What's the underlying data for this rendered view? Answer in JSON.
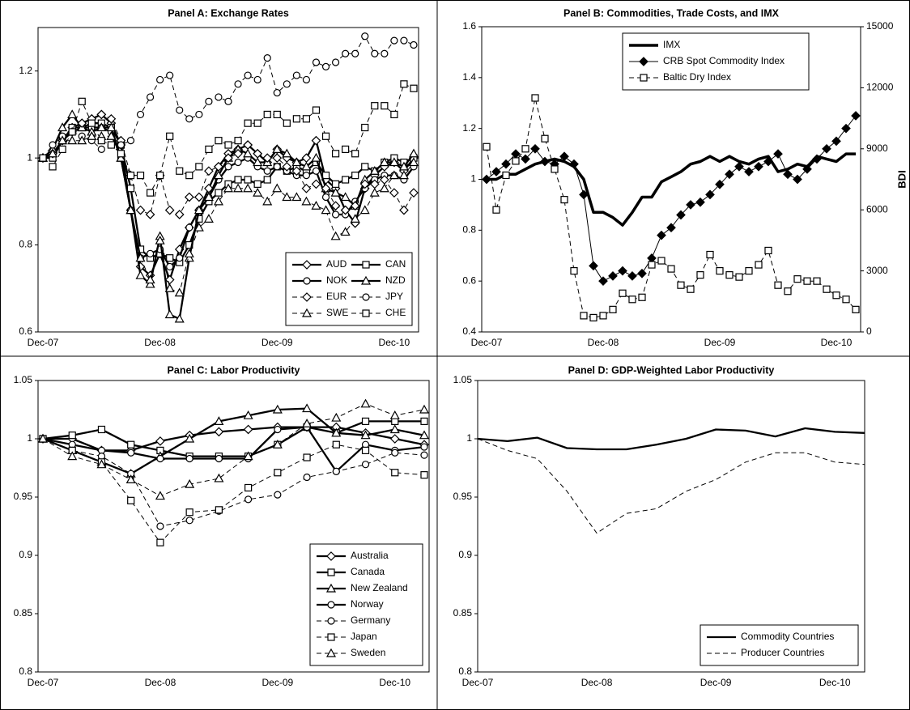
{
  "chart_data": [
    {
      "type": "line",
      "title": "Panel A: Exchange Rates",
      "legend": "lower right",
      "legend_columns": 2,
      "categories": [
        "Dec-07",
        null,
        null,
        null,
        null,
        null,
        null,
        null,
        null,
        null,
        null,
        null,
        "Dec-08",
        null,
        null,
        null,
        null,
        null,
        null,
        null,
        null,
        null,
        null,
        null,
        "Dec-09",
        null,
        null,
        null,
        null,
        null,
        null,
        null,
        null,
        null,
        null,
        null,
        "Dec-10",
        null,
        null
      ],
      "ylim": [
        0.6,
        1.3
      ],
      "yticks": [
        0.6,
        0.8,
        1,
        1.2
      ],
      "series": [
        {
          "name": "AUD",
          "color": "#000000",
          "weight": "bold",
          "dash": false,
          "marker": "diamond",
          "marker_fill": "#ffffff",
          "values": [
            1.0,
            1.01,
            1.04,
            1.07,
            1.08,
            1.09,
            1.1,
            1.08,
            1.03,
            0.88,
            0.75,
            0.73,
            0.78,
            0.72,
            0.79,
            0.84,
            0.88,
            0.93,
            0.98,
            1.01,
            1.02,
            1.03,
            1.01,
            0.99,
            1.02,
            1.0,
            0.99,
            1.0,
            1.04,
            0.95,
            0.93,
            0.88,
            0.85,
            0.93,
            0.96,
            0.98,
            0.99,
            0.97,
            1.0
          ]
        },
        {
          "name": "CAN",
          "color": "#000000",
          "weight": "bold",
          "dash": false,
          "marker": "square",
          "marker_fill": "#ffffff",
          "values": [
            1.0,
            1.0,
            1.04,
            1.07,
            1.07,
            1.08,
            1.08,
            1.07,
            1.03,
            0.93,
            0.79,
            0.77,
            0.78,
            0.77,
            0.76,
            0.8,
            0.86,
            0.9,
            0.92,
            0.94,
            0.95,
            0.95,
            0.94,
            0.95,
            0.98,
            0.97,
            0.98,
            0.97,
            0.99,
            0.96,
            0.94,
            0.95,
            0.96,
            0.98,
            0.97,
            0.99,
            1.0,
            0.99,
            1.0
          ]
        },
        {
          "name": "NOK",
          "color": "#000000",
          "weight": "bold",
          "dash": false,
          "marker": "circle",
          "marker_fill": "#ffffff",
          "values": [
            1.0,
            1.01,
            1.04,
            1.06,
            1.07,
            1.07,
            1.07,
            1.06,
            1.0,
            0.88,
            0.77,
            0.78,
            0.79,
            0.75,
            0.77,
            0.84,
            0.88,
            0.91,
            0.95,
            0.98,
            0.99,
            1.0,
            0.98,
            0.97,
            0.98,
            0.97,
            0.96,
            0.96,
            0.97,
            0.91,
            0.87,
            0.87,
            0.9,
            0.93,
            0.95,
            0.96,
            0.96,
            0.95,
            0.98
          ]
        },
        {
          "name": "NZD",
          "color": "#000000",
          "weight": "bold",
          "dash": false,
          "marker": "triangle",
          "marker_fill": "#ffffff",
          "values": [
            1.0,
            1.02,
            1.07,
            1.1,
            1.07,
            1.06,
            1.07,
            1.07,
            1.0,
            0.88,
            0.73,
            0.71,
            0.82,
            0.64,
            0.63,
            0.77,
            0.88,
            0.91,
            0.96,
            1.0,
            1.02,
            1.01,
            0.99,
            0.99,
            1.02,
            1.01,
            0.99,
            0.98,
            1.0,
            0.93,
            0.92,
            0.91,
            0.89,
            0.95,
            0.97,
            0.99,
            0.99,
            0.98,
            1.01
          ]
        },
        {
          "name": "EUR",
          "color": "#000000",
          "weight": "normal",
          "dash": true,
          "marker": "diamond",
          "marker_fill": "#ffffff",
          "values": [
            1.0,
            1.01,
            1.04,
            1.06,
            1.08,
            1.09,
            1.1,
            1.09,
            1.04,
            0.96,
            0.88,
            0.87,
            0.96,
            0.88,
            0.87,
            0.91,
            0.91,
            0.97,
            0.98,
            1.0,
            1.01,
            1.03,
            1.01,
            1.0,
            1.0,
            0.98,
            0.97,
            0.93,
            0.94,
            0.93,
            0.89,
            0.88,
            0.89,
            0.94,
            0.94,
            0.95,
            0.92,
            0.88,
            0.92
          ]
        },
        {
          "name": "JPY",
          "color": "#000000",
          "weight": "normal",
          "dash": true,
          "marker": "circle",
          "marker_fill": "#ffffff",
          "values": [
            1.0,
            1.03,
            1.05,
            1.06,
            1.05,
            1.04,
            1.02,
            1.03,
            1.03,
            1.04,
            1.1,
            1.14,
            1.18,
            1.19,
            1.11,
            1.09,
            1.1,
            1.13,
            1.14,
            1.13,
            1.17,
            1.19,
            1.18,
            1.23,
            1.15,
            1.17,
            1.19,
            1.18,
            1.22,
            1.21,
            1.22,
            1.24,
            1.24,
            1.28,
            1.24,
            1.24,
            1.27,
            1.27,
            1.26
          ]
        },
        {
          "name": "SWE",
          "color": "#000000",
          "weight": "normal",
          "dash": true,
          "marker": "triangle",
          "marker_fill": "#ffffff",
          "values": [
            1.0,
            1.01,
            1.04,
            1.04,
            1.04,
            1.05,
            1.05,
            1.05,
            1.0,
            0.88,
            0.77,
            0.72,
            0.81,
            0.7,
            0.69,
            0.78,
            0.84,
            0.86,
            0.9,
            0.93,
            0.93,
            0.93,
            0.92,
            0.9,
            0.93,
            0.91,
            0.91,
            0.9,
            0.89,
            0.88,
            0.82,
            0.83,
            0.86,
            0.88,
            0.92,
            0.93,
            0.96,
            0.96,
            0.99
          ]
        },
        {
          "name": "CHE",
          "color": "#000000",
          "weight": "normal",
          "dash": true,
          "marker": "square",
          "marker_fill": "#ffffff",
          "values": [
            1.0,
            0.98,
            1.02,
            1.06,
            1.13,
            1.08,
            1.04,
            1.03,
            1.01,
            0.96,
            0.96,
            0.92,
            0.96,
            1.05,
            0.97,
            0.96,
            0.98,
            1.02,
            1.04,
            1.03,
            1.04,
            1.08,
            1.08,
            1.1,
            1.1,
            1.08,
            1.09,
            1.09,
            1.11,
            1.05,
            1.01,
            1.02,
            1.01,
            1.07,
            1.12,
            1.12,
            1.1,
            1.17,
            1.16
          ]
        }
      ]
    },
    {
      "type": "line",
      "title": "Panel B: Commodities, Trade Costs, and IMX",
      "legend": "upper center",
      "legend_columns": 1,
      "y2label": "BDI",
      "categories": [
        "Dec-07",
        null,
        null,
        null,
        null,
        null,
        null,
        null,
        null,
        null,
        null,
        null,
        "Dec-08",
        null,
        null,
        null,
        null,
        null,
        null,
        null,
        null,
        null,
        null,
        null,
        "Dec-09",
        null,
        null,
        null,
        null,
        null,
        null,
        null,
        null,
        null,
        null,
        null,
        "Dec-10",
        null,
        null
      ],
      "ylim": [
        0.4,
        1.6
      ],
      "yticks": [
        0.4,
        0.6,
        0.8,
        1,
        1.2,
        1.4,
        1.6
      ],
      "y2lim": [
        0,
        15000
      ],
      "y2ticks": [
        0,
        3000,
        6000,
        9000,
        12000,
        15000
      ],
      "series": [
        {
          "name": "IMX",
          "color": "#000000",
          "weight": "heavy",
          "dash": false,
          "marker": "none",
          "marker_fill": "#ffffff",
          "values": [
            1.0,
            1.0,
            1.02,
            1.02,
            1.04,
            1.06,
            1.07,
            1.08,
            1.07,
            1.05,
            1.0,
            0.87,
            0.87,
            0.85,
            0.82,
            0.87,
            0.93,
            0.93,
            0.99,
            1.01,
            1.03,
            1.06,
            1.07,
            1.09,
            1.07,
            1.09,
            1.07,
            1.06,
            1.08,
            1.09,
            1.03,
            1.04,
            1.06,
            1.05,
            1.09,
            1.08,
            1.07,
            1.1,
            1.1
          ]
        },
        {
          "name": "CRB Spot Commodity Index",
          "color": "#000000",
          "weight": "normal",
          "dash": false,
          "marker": "diamond",
          "marker_fill": "#000000",
          "values": [
            1.0,
            1.03,
            1.06,
            1.1,
            1.08,
            1.12,
            1.07,
            1.06,
            1.09,
            1.06,
            0.94,
            0.66,
            0.6,
            0.62,
            0.64,
            0.62,
            0.63,
            0.69,
            0.78,
            0.81,
            0.86,
            0.9,
            0.91,
            0.94,
            0.98,
            1.02,
            1.05,
            1.03,
            1.05,
            1.07,
            1.1,
            1.02,
            1.0,
            1.04,
            1.08,
            1.12,
            1.15,
            1.2,
            1.25
          ]
        },
        {
          "name": "Baltic Dry Index",
          "color": "#000000",
          "weight": "normal",
          "dash": true,
          "marker": "square",
          "marker_fill": "#ffffff",
          "axis": "y2",
          "values": [
            9100,
            6000,
            7700,
            8400,
            9000,
            11500,
            9500,
            8000,
            6500,
            3000,
            800,
            700,
            800,
            1100,
            1900,
            1600,
            1700,
            3300,
            3500,
            3100,
            2300,
            2100,
            2800,
            3800,
            3000,
            2800,
            2700,
            3000,
            3300,
            4000,
            2300,
            2000,
            2600,
            2500,
            2500,
            2100,
            1800,
            1600,
            1100
          ]
        }
      ]
    },
    {
      "type": "line",
      "title": "Panel C: Labor Productivity",
      "legend": "lower right",
      "legend_columns": 1,
      "categories": [
        "Dec-07",
        null,
        null,
        null,
        "Dec-08",
        null,
        null,
        null,
        "Dec-09",
        null,
        null,
        null,
        "Dec-10",
        null
      ],
      "ylim": [
        0.8,
        1.05
      ],
      "yticks": [
        0.8,
        0.85,
        0.9,
        0.95,
        1,
        1.05
      ],
      "series": [
        {
          "name": "Australia",
          "color": "#000000",
          "weight": "bold",
          "dash": false,
          "marker": "diamond",
          "marker_fill": "#ffffff",
          "values": [
            1.0,
            1.0,
            0.99,
            0.99,
            0.998,
            1.003,
            1.006,
            1.008,
            1.01,
            1.01,
            1.01,
            1.005,
            1.0,
            0.995
          ]
        },
        {
          "name": "Canada",
          "color": "#000000",
          "weight": "bold",
          "dash": false,
          "marker": "square",
          "marker_fill": "#ffffff",
          "values": [
            1.0,
            1.003,
            1.008,
            0.995,
            0.99,
            0.985,
            0.985,
            0.985,
            0.995,
            1.01,
            1.005,
            1.015,
            1.015,
            1.015
          ]
        },
        {
          "name": "New Zealand",
          "color": "#000000",
          "weight": "bold",
          "dash": false,
          "marker": "triangle",
          "marker_fill": "#ffffff",
          "values": [
            1.0,
            0.99,
            0.98,
            0.97,
            0.985,
            1.0,
            1.015,
            1.02,
            1.025,
            1.026,
            1.005,
            1.003,
            1.008,
            1.003
          ]
        },
        {
          "name": "Norway",
          "color": "#000000",
          "weight": "bold",
          "dash": false,
          "marker": "circle",
          "marker_fill": "#ffffff",
          "values": [
            1.0,
            0.995,
            0.99,
            0.988,
            0.983,
            0.983,
            0.983,
            0.983,
            1.008,
            1.01,
            0.972,
            0.995,
            0.99,
            0.993
          ]
        },
        {
          "name": "Germany",
          "color": "#000000",
          "weight": "normal",
          "dash": true,
          "marker": "circle",
          "marker_fill": "#ffffff",
          "values": [
            1.0,
            0.99,
            0.985,
            0.97,
            0.925,
            0.93,
            0.938,
            0.948,
            0.952,
            0.967,
            0.972,
            0.978,
            0.988,
            0.986
          ]
        },
        {
          "name": "Japan",
          "color": "#000000",
          "weight": "normal",
          "dash": true,
          "marker": "square",
          "marker_fill": "#ffffff",
          "values": [
            1.0,
            0.99,
            0.98,
            0.947,
            0.911,
            0.937,
            0.939,
            0.958,
            0.971,
            0.984,
            0.995,
            0.99,
            0.971,
            0.969
          ]
        },
        {
          "name": "Sweden",
          "color": "#000000",
          "weight": "normal",
          "dash": true,
          "marker": "triangle",
          "marker_fill": "#ffffff",
          "values": [
            1.0,
            0.985,
            0.978,
            0.965,
            0.951,
            0.961,
            0.966,
            0.985,
            0.995,
            1.013,
            1.018,
            1.03,
            1.02,
            1.025
          ]
        }
      ]
    },
    {
      "type": "line",
      "title": "Panel D: GDP-Weighted Labor Productivity",
      "legend": "lower right",
      "legend_columns": 1,
      "categories": [
        "Dec-07",
        null,
        null,
        null,
        "Dec-08",
        null,
        null,
        null,
        "Dec-09",
        null,
        null,
        null,
        "Dec-10",
        null
      ],
      "ylim": [
        0.8,
        1.05
      ],
      "yticks": [
        0.8,
        0.85,
        0.9,
        0.95,
        1,
        1.05
      ],
      "series": [
        {
          "name": "Commodity Countries",
          "color": "#000000",
          "weight": "bold",
          "dash": false,
          "marker": "none",
          "marker_fill": "#ffffff",
          "values": [
            1.0,
            0.998,
            1.001,
            0.992,
            0.991,
            0.991,
            0.995,
            1.0,
            1.008,
            1.007,
            1.002,
            1.009,
            1.006,
            1.005
          ]
        },
        {
          "name": "Producer Countries",
          "color": "#000000",
          "weight": "normal",
          "dash": true,
          "marker": "none",
          "marker_fill": "#ffffff",
          "values": [
            1.0,
            0.99,
            0.983,
            0.955,
            0.919,
            0.936,
            0.94,
            0.955,
            0.965,
            0.98,
            0.988,
            0.988,
            0.98,
            0.978
          ]
        }
      ]
    }
  ]
}
